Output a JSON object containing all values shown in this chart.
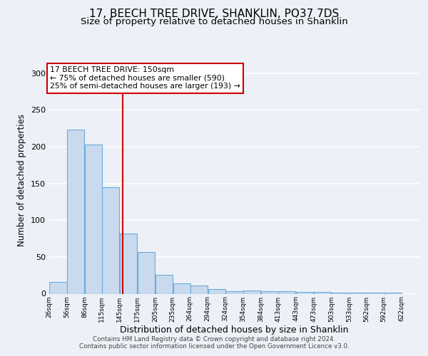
{
  "title": "17, BEECH TREE DRIVE, SHANKLIN, PO37 7DS",
  "subtitle": "Size of property relative to detached houses in Shanklin",
  "xlabel": "Distribution of detached houses by size in Shanklin",
  "ylabel": "Number of detached properties",
  "bar_left_edges": [
    26,
    56,
    86,
    115,
    145,
    175,
    205,
    235,
    264,
    294,
    324,
    354,
    384,
    413,
    443,
    473,
    503,
    533,
    562,
    592
  ],
  "bar_heights": [
    16,
    223,
    203,
    145,
    82,
    57,
    26,
    14,
    11,
    6,
    3,
    4,
    3,
    3,
    2,
    2,
    1,
    1,
    1,
    1
  ],
  "bar_widths": [
    30,
    30,
    30,
    30,
    30,
    30,
    30,
    30,
    30,
    30,
    30,
    30,
    30,
    30,
    30,
    30,
    30,
    30,
    30,
    30
  ],
  "tick_labels": [
    "26sqm",
    "56sqm",
    "86sqm",
    "115sqm",
    "145sqm",
    "175sqm",
    "205sqm",
    "235sqm",
    "264sqm",
    "294sqm",
    "324sqm",
    "354sqm",
    "384sqm",
    "413sqm",
    "443sqm",
    "473sqm",
    "503sqm",
    "533sqm",
    "562sqm",
    "592sqm",
    "622sqm"
  ],
  "tick_positions": [
    26,
    56,
    86,
    115,
    145,
    175,
    205,
    235,
    264,
    294,
    324,
    354,
    384,
    413,
    443,
    473,
    503,
    533,
    562,
    592,
    622
  ],
  "bar_color": "#c9d9ee",
  "bar_edge_color": "#6aacdb",
  "vline_x": 150,
  "vline_color": "#cc0000",
  "ylim": [
    0,
    310
  ],
  "xlim": [
    26,
    652
  ],
  "annotation_line1": "17 BEECH TREE DRIVE: 150sqm",
  "annotation_line2": "← 75% of detached houses are smaller (590)",
  "annotation_line3": "25% of semi-detached houses are larger (193) →",
  "footnote1": "Contains HM Land Registry data © Crown copyright and database right 2024.",
  "footnote2": "Contains public sector information licensed under the Open Government Licence v3.0.",
  "background_color": "#edf1f7",
  "grid_color": "#ffffff",
  "title_fontsize": 11,
  "subtitle_fontsize": 9.5,
  "xlabel_fontsize": 9,
  "ylabel_fontsize": 8.5,
  "yticks": [
    0,
    50,
    100,
    150,
    200,
    250,
    300
  ]
}
